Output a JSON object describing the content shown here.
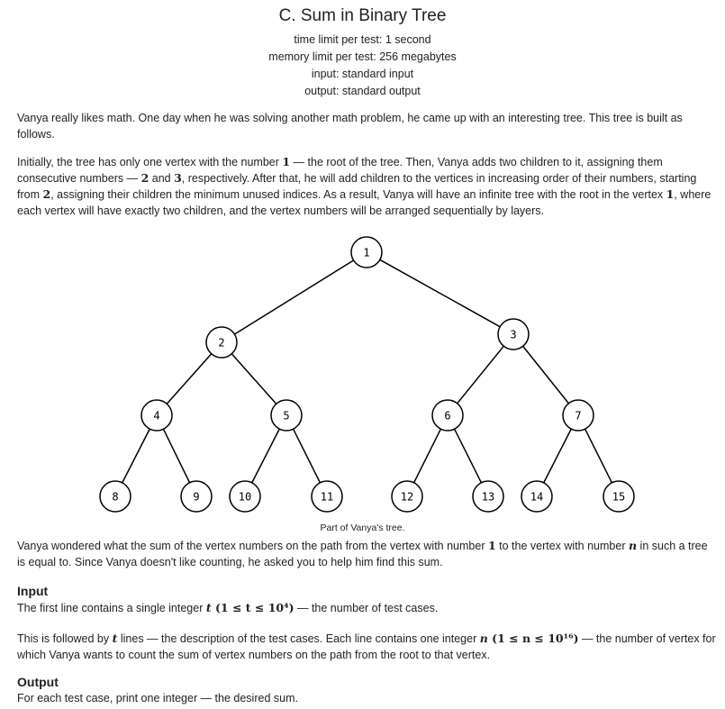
{
  "problem": {
    "title": "C. Sum in Binary Tree",
    "time_limit": "time limit per test: 1 second",
    "memory_limit": "memory limit per test: 256 megabytes",
    "input": "input: standard input",
    "output": "output: standard output"
  },
  "statement": {
    "p1": "Vanya really likes math. One day when he was solving another math problem, he came up with an interesting tree. This tree is built as follows.",
    "p2": {
      "a": "Initially, the tree has only one vertex with the number ",
      "b": "1",
      "c": " — the root of the tree. Then, Vanya adds two children to it, assigning them consecutive numbers — ",
      "d": "2",
      "e": " and ",
      "f": "3",
      "g": ", respectively. After that, he will add children to the vertices in increasing order of their numbers, starting from ",
      "h": "2",
      "i": ", assigning their children the minimum unused indices. As a result, Vanya will have an infinite tree with the root in the vertex ",
      "j": "1",
      "k": ", where each vertex will have exactly two children, and the vertex numbers will be arranged sequentially by layers."
    },
    "caption": "Part of Vanya's tree.",
    "p3": {
      "a": "Vanya wondered what the sum of the vertex numbers on the path from the vertex with number ",
      "b": "1",
      "c": " to the vertex with number ",
      "d": "n",
      "e": " in such a tree is equal to. Since Vanya doesn't like counting, he asked you to help him find this sum."
    }
  },
  "input_section": {
    "title": "Input",
    "p1": {
      "a": "The first line contains a single integer ",
      "b": "t",
      "c": " (1 ≤ t ≤ 10⁴)",
      "d": " — the number of test cases."
    },
    "p2": {
      "a": "This is followed by ",
      "b": "t",
      "c": " lines — the description of the test cases. Each line contains one integer ",
      "d": "n",
      "e": " (1 ≤ n ≤ 10¹⁶)",
      "f": " — the number of vertex for which Vanya wants to count the sum of vertex numbers on the path from the root to that vertex."
    }
  },
  "output_section": {
    "title": "Output",
    "p1": "For each test case, print one integer — the desired sum."
  },
  "tree": {
    "nodes": [
      "1",
      "2",
      "3",
      "4",
      "5",
      "6",
      "7",
      "8",
      "9",
      "10",
      "11",
      "12",
      "13",
      "14",
      "15"
    ]
  }
}
